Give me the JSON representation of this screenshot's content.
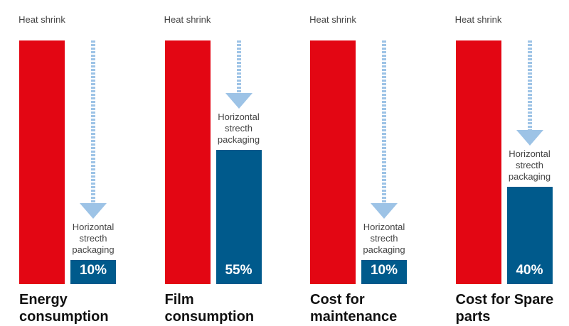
{
  "chart_data": {
    "type": "bar",
    "categories": [
      "Energy consumption",
      "Film consumption",
      "Cost for maintenance",
      "Cost for Spare parts"
    ],
    "series": [
      {
        "name": "Heat shrink",
        "color": "#e30613",
        "values": [
          100,
          100,
          100,
          100
        ]
      },
      {
        "name": "Horizontal strecth packaging",
        "color": "#005a8c",
        "values": [
          10,
          55,
          10,
          40
        ],
        "value_labels": [
          "10%",
          "55%",
          "10%",
          "40%"
        ]
      }
    ],
    "ylim": [
      0,
      100
    ]
  }
}
